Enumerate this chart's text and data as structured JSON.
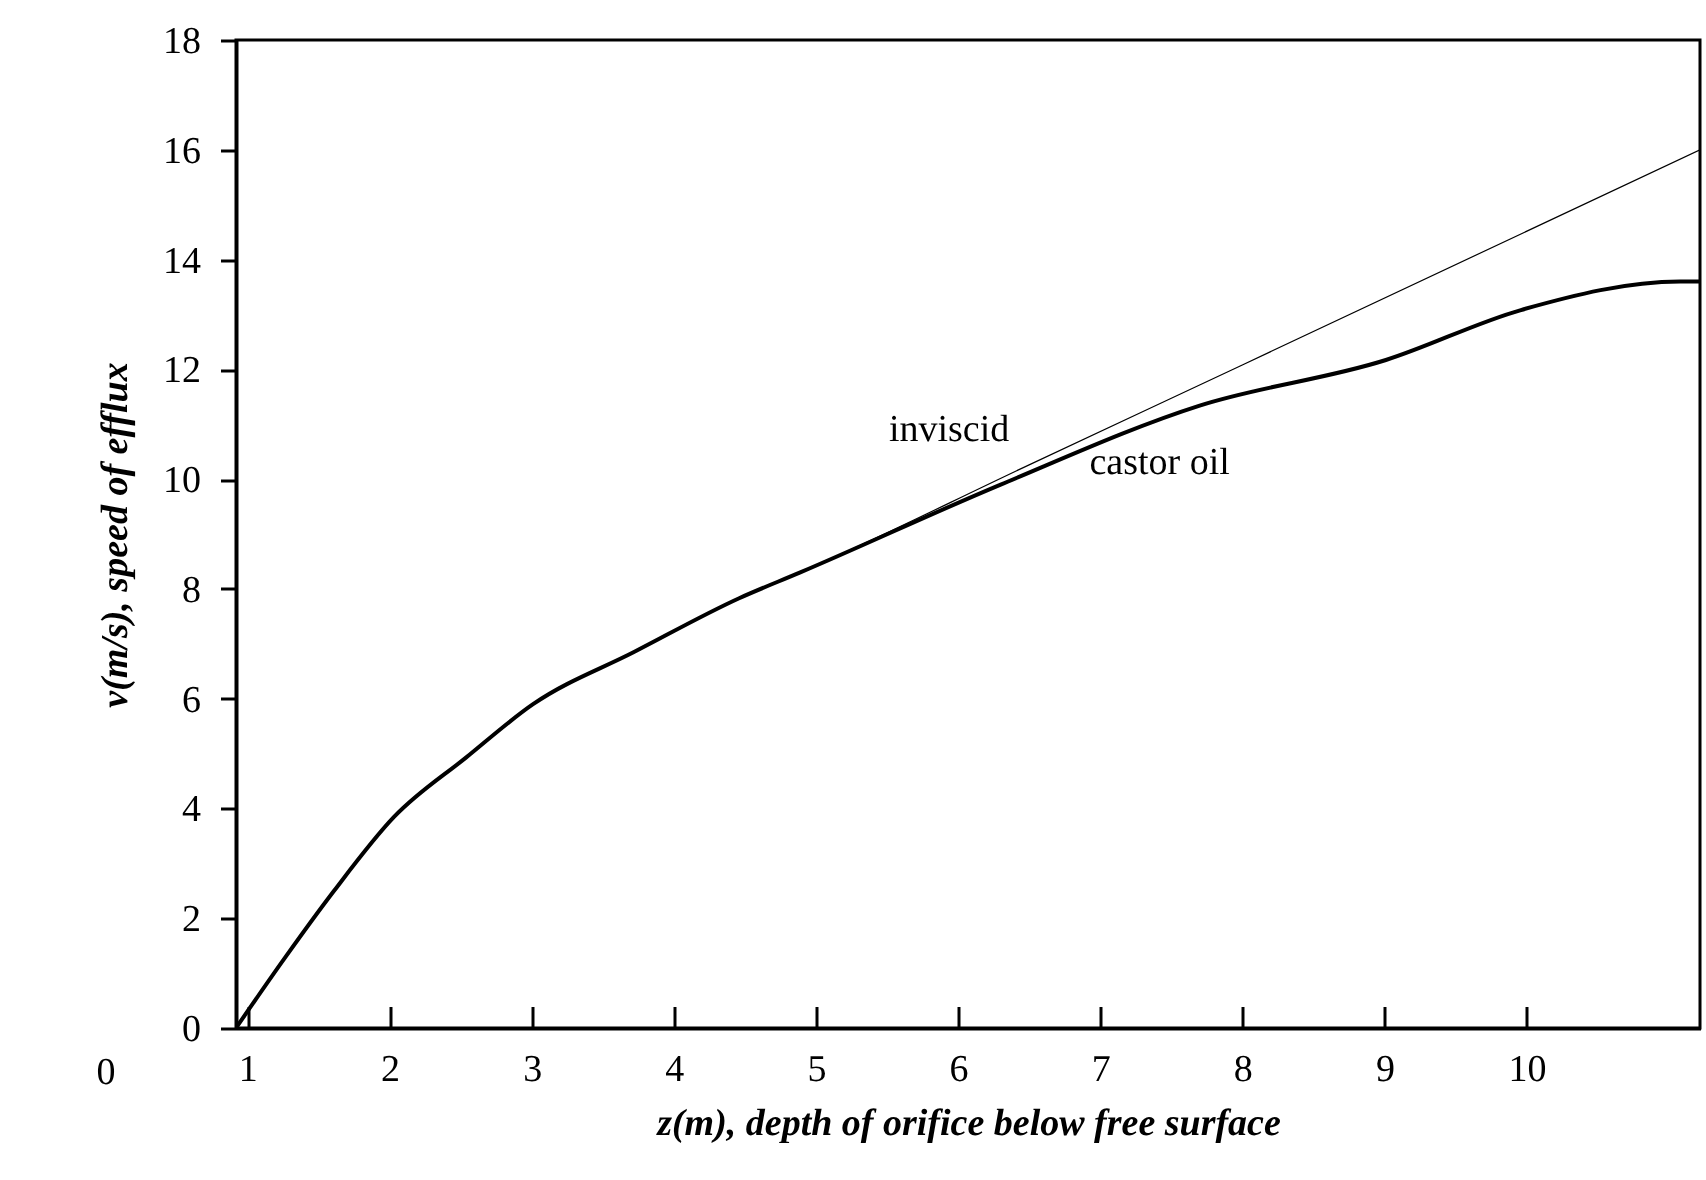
{
  "chart_data": {
    "type": "line",
    "xlabel": "z(m), depth of orifice below free surface",
    "ylabel": "v(m/s), speed of efflux",
    "xlim": [
      0.92,
      11.22
    ],
    "xticks": [
      1,
      2,
      3,
      4,
      5,
      6,
      7,
      8,
      9,
      10
    ],
    "ylim": [
      0,
      18
    ],
    "yticks": [
      0,
      2,
      4,
      6,
      8,
      10,
      12,
      14,
      16,
      18
    ],
    "grid": false,
    "legend": false,
    "annotations": [
      "0"
    ],
    "series": [
      {
        "name": "inviscid",
        "color": "#000000",
        "x": [
          0.92,
          1.27,
          1.61,
          2.03,
          2.54,
          3.01,
          3.72,
          4.46,
          4.89,
          6.5,
          8,
          11.22
        ],
        "values": [
          0,
          1.3,
          2.5,
          3.84,
          4.93,
          5.9,
          6.85,
          7.83,
          8.3,
          10.26,
          12.08,
          16
        ]
      },
      {
        "name": "castor oil",
        "color": "#000000",
        "x": [
          0.92,
          1.27,
          1.61,
          2.03,
          2.54,
          3.01,
          3.72,
          4.46,
          4.89,
          6.3,
          7.7,
          9.01,
          9.96,
          11.08,
          11.22
        ],
        "values": [
          0,
          1.3,
          2.5,
          3.84,
          4.93,
          5.9,
          6.85,
          7.83,
          8.3,
          9.9,
          11.34,
          12.17,
          13.08,
          13.6,
          13.6
        ]
      }
    ]
  }
}
